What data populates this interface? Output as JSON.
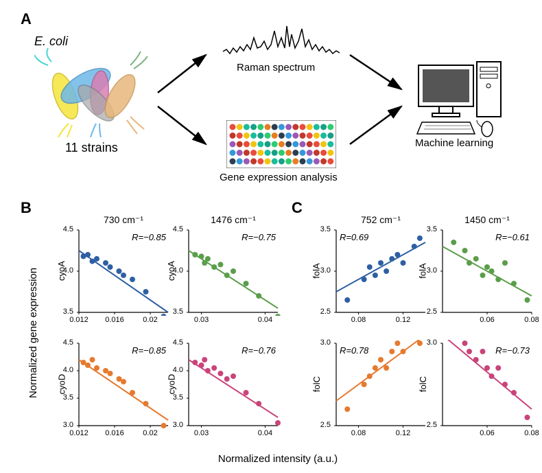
{
  "panelA": {
    "label": "A",
    "ecoli_label": "E. coli",
    "strains_label": "11 strains",
    "raman_label": "Raman spectrum",
    "gene_expr_label": "Gene expression analysis",
    "ml_label": "Machine learning",
    "bacteria_colors": [
      "#f5e43a",
      "#6db8e8",
      "#d97fb3",
      "#a8a8a8",
      "#e8b87c"
    ],
    "flagella_colors": [
      "#4dd6d6",
      "#f5e43a",
      "#6db8e8",
      "#7fb580",
      "#e8b87c"
    ]
  },
  "panelB": {
    "label": "B",
    "y_axis_label": "Normalized gene expression",
    "x_axis_label": "Normalized intensity (a.u.)",
    "charts": [
      {
        "title": "730 cm⁻¹",
        "gene": "cyoA",
        "r": "R=−0.85",
        "color": "#2e5fa3",
        "x_range": [
          0.012,
          0.022
        ],
        "y_range": [
          3.5,
          4.5
        ],
        "x_ticks": [
          0.012,
          0.016,
          0.02
        ],
        "y_ticks": [
          3.5,
          4.0,
          4.5
        ],
        "points": [
          [
            0.0125,
            4.18
          ],
          [
            0.013,
            4.2
          ],
          [
            0.0135,
            4.12
          ],
          [
            0.014,
            4.15
          ],
          [
            0.015,
            4.1
          ],
          [
            0.0155,
            4.05
          ],
          [
            0.0165,
            4.0
          ],
          [
            0.017,
            3.95
          ],
          [
            0.018,
            3.9
          ],
          [
            0.0195,
            3.75
          ],
          [
            0.0215,
            3.45
          ]
        ],
        "line": [
          [
            0.012,
            4.25
          ],
          [
            0.022,
            3.5
          ]
        ]
      },
      {
        "title": "1476 cm⁻¹",
        "gene": "cyoA",
        "r": "R=−0.75",
        "color": "#5a9e4a",
        "x_range": [
          0.028,
          0.042
        ],
        "y_range": [
          3.5,
          4.5
        ],
        "x_ticks": [
          0.03,
          0.04
        ],
        "y_ticks": [
          3.5,
          4.0,
          4.5
        ],
        "points": [
          [
            0.029,
            4.2
          ],
          [
            0.03,
            4.18
          ],
          [
            0.0305,
            4.1
          ],
          [
            0.031,
            4.15
          ],
          [
            0.032,
            4.05
          ],
          [
            0.033,
            4.08
          ],
          [
            0.034,
            3.95
          ],
          [
            0.035,
            4.0
          ],
          [
            0.037,
            3.85
          ],
          [
            0.039,
            3.7
          ],
          [
            0.042,
            3.45
          ]
        ],
        "line": [
          [
            0.028,
            4.25
          ],
          [
            0.042,
            3.55
          ]
        ]
      },
      {
        "title": "",
        "gene": "cyoD",
        "r": "R=−0.85",
        "color": "#e67a2e",
        "x_range": [
          0.012,
          0.022
        ],
        "y_range": [
          3.0,
          4.5
        ],
        "x_ticks": [
          0.012,
          0.016,
          0.02
        ],
        "y_ticks": [
          3.0,
          3.5,
          4.0,
          4.5
        ],
        "points": [
          [
            0.0125,
            4.15
          ],
          [
            0.013,
            4.1
          ],
          [
            0.0135,
            4.2
          ],
          [
            0.014,
            4.05
          ],
          [
            0.015,
            4.0
          ],
          [
            0.0155,
            3.95
          ],
          [
            0.0165,
            3.85
          ],
          [
            0.017,
            3.8
          ],
          [
            0.018,
            3.6
          ],
          [
            0.0195,
            3.4
          ],
          [
            0.0215,
            3.0
          ]
        ],
        "line": [
          [
            0.012,
            4.2
          ],
          [
            0.022,
            3.1
          ]
        ]
      },
      {
        "title": "",
        "gene": "cyoD",
        "r": "R=−0.76",
        "color": "#c9447a",
        "x_range": [
          0.028,
          0.042
        ],
        "y_range": [
          3.0,
          4.5
        ],
        "x_ticks": [
          0.03,
          0.04
        ],
        "y_ticks": [
          3.0,
          3.5,
          4.0,
          4.5
        ],
        "points": [
          [
            0.029,
            4.15
          ],
          [
            0.03,
            4.1
          ],
          [
            0.0305,
            4.2
          ],
          [
            0.031,
            4.0
          ],
          [
            0.032,
            4.05
          ],
          [
            0.033,
            3.95
          ],
          [
            0.034,
            3.85
          ],
          [
            0.035,
            3.9
          ],
          [
            0.037,
            3.6
          ],
          [
            0.039,
            3.4
          ],
          [
            0.042,
            3.05
          ]
        ],
        "line": [
          [
            0.028,
            4.2
          ],
          [
            0.042,
            3.15
          ]
        ]
      }
    ]
  },
  "panelC": {
    "label": "C",
    "charts": [
      {
        "title": "752 cm⁻¹",
        "gene": "folA",
        "r": "R=0.69",
        "color": "#2e5fa3",
        "x_range": [
          0.06,
          0.14
        ],
        "y_range": [
          2.5,
          3.5
        ],
        "x_ticks": [
          0.08,
          0.12
        ],
        "y_ticks": [
          2.5,
          3.0,
          3.5
        ],
        "points": [
          [
            0.07,
            2.65
          ],
          [
            0.085,
            2.9
          ],
          [
            0.09,
            3.05
          ],
          [
            0.095,
            2.95
          ],
          [
            0.1,
            3.1
          ],
          [
            0.105,
            3.0
          ],
          [
            0.11,
            3.15
          ],
          [
            0.115,
            3.2
          ],
          [
            0.12,
            3.1
          ],
          [
            0.13,
            3.3
          ],
          [
            0.135,
            3.4
          ]
        ],
        "line": [
          [
            0.06,
            2.75
          ],
          [
            0.14,
            3.35
          ]
        ]
      },
      {
        "title": "1450 cm⁻¹",
        "gene": "folA",
        "r": "R=−0.61",
        "color": "#5a9e4a",
        "x_range": [
          0.04,
          0.08
        ],
        "y_range": [
          2.5,
          3.5
        ],
        "x_ticks": [
          0.06,
          0.08
        ],
        "y_ticks": [
          2.5,
          3.0,
          3.5
        ],
        "points": [
          [
            0.045,
            3.35
          ],
          [
            0.05,
            3.25
          ],
          [
            0.052,
            3.1
          ],
          [
            0.055,
            3.15
          ],
          [
            0.058,
            2.95
          ],
          [
            0.06,
            3.05
          ],
          [
            0.062,
            3.0
          ],
          [
            0.065,
            2.9
          ],
          [
            0.068,
            3.1
          ],
          [
            0.072,
            2.85
          ],
          [
            0.078,
            2.65
          ]
        ],
        "line": [
          [
            0.04,
            3.3
          ],
          [
            0.08,
            2.7
          ]
        ]
      },
      {
        "title": "",
        "gene": "folC",
        "r": "R=0.78",
        "color": "#e67a2e",
        "x_range": [
          0.06,
          0.14
        ],
        "y_range": [
          2.5,
          3.0
        ],
        "x_ticks": [
          0.08,
          0.12
        ],
        "y_ticks": [
          2.5,
          3.0
        ],
        "points": [
          [
            0.07,
            2.6
          ],
          [
            0.085,
            2.75
          ],
          [
            0.09,
            2.8
          ],
          [
            0.095,
            2.85
          ],
          [
            0.1,
            2.9
          ],
          [
            0.105,
            2.85
          ],
          [
            0.11,
            2.95
          ],
          [
            0.115,
            3.0
          ],
          [
            0.12,
            2.95
          ],
          [
            0.13,
            3.05
          ],
          [
            0.135,
            3.0
          ]
        ],
        "line": [
          [
            0.06,
            2.65
          ],
          [
            0.14,
            3.05
          ]
        ]
      },
      {
        "title": "",
        "gene": "folC",
        "r": "R=−0.73",
        "color": "#c9447a",
        "x_range": [
          0.04,
          0.08
        ],
        "y_range": [
          2.5,
          3.0
        ],
        "x_ticks": [
          0.06,
          0.08
        ],
        "y_ticks": [
          2.5,
          3.0
        ],
        "points": [
          [
            0.045,
            3.05
          ],
          [
            0.05,
            3.0
          ],
          [
            0.052,
            2.95
          ],
          [
            0.055,
            2.9
          ],
          [
            0.058,
            2.95
          ],
          [
            0.06,
            2.85
          ],
          [
            0.062,
            2.8
          ],
          [
            0.065,
            2.85
          ],
          [
            0.068,
            2.75
          ],
          [
            0.072,
            2.7
          ],
          [
            0.078,
            2.55
          ]
        ],
        "line": [
          [
            0.04,
            3.05
          ],
          [
            0.08,
            2.6
          ]
        ]
      }
    ]
  }
}
